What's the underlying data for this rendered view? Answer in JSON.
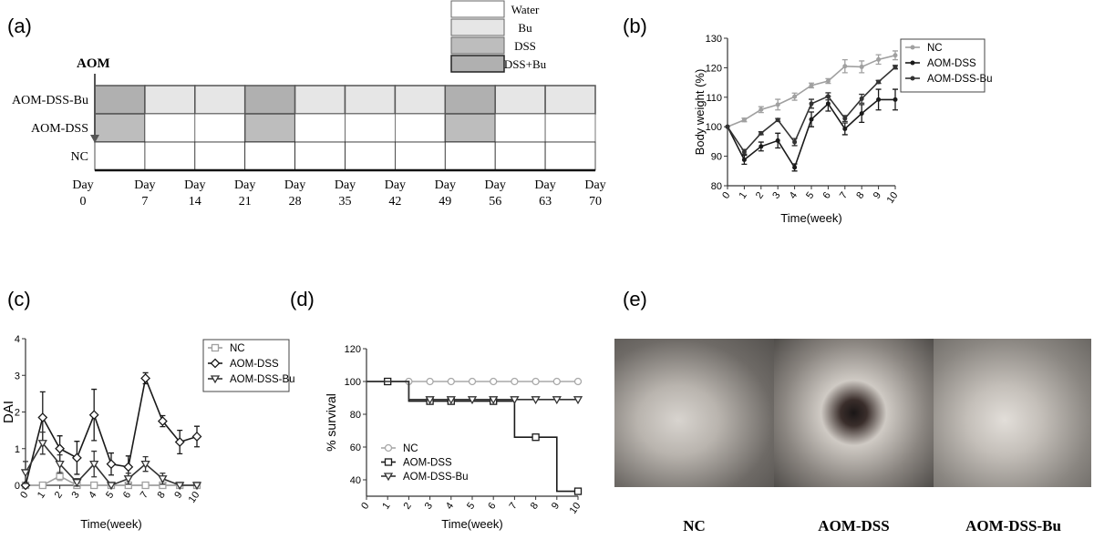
{
  "panel_labels": {
    "a": "(a)",
    "b": "(b)",
    "c": "(c)",
    "d": "(d)",
    "e": "(e)"
  },
  "schedule": {
    "legend": [
      {
        "label": "Water",
        "color": "#ffffff"
      },
      {
        "label": "Bu",
        "color": "#e6e6e6"
      },
      {
        "label": "DSS",
        "color": "#bdbdbd"
      },
      {
        "label": "DSS+Bu",
        "color": "#b0b0b0"
      }
    ],
    "aom_label": "AOM",
    "rows": [
      {
        "label": "AOM-DSS-Bu",
        "cells": [
          "DSS+Bu",
          "Bu",
          "Bu",
          "DSS+Bu",
          "Bu",
          "Bu",
          "Bu",
          "DSS+Bu",
          "Bu",
          "Bu"
        ]
      },
      {
        "label": "AOM-DSS",
        "cells": [
          "DSS",
          "Water",
          "Water",
          "DSS",
          "Water",
          "Water",
          "Water",
          "DSS",
          "Water",
          "Water"
        ]
      },
      {
        "label": "NC",
        "cells": [
          "Water",
          "Water",
          "Water",
          "Water",
          "Water",
          "Water",
          "Water",
          "Water",
          "Water",
          "Water"
        ]
      }
    ],
    "day_prefix": "Day",
    "days": [
      "0",
      "7",
      "14",
      "21",
      "28",
      "35",
      "42",
      "49",
      "56",
      "63",
      "70"
    ]
  },
  "chart_data": [
    {
      "panel": "b",
      "type": "line",
      "xlabel": "Time(week)",
      "ylabel": "Body weight (%)",
      "x": [
        0,
        1,
        2,
        3,
        4,
        5,
        6,
        7,
        8,
        9,
        10
      ],
      "xticks": [
        "0",
        "1",
        "2",
        "3",
        "4",
        "5",
        "6",
        "7",
        "8",
        "9",
        "10"
      ],
      "ylim": [
        80,
        130
      ],
      "yticks": [
        80,
        90,
        100,
        110,
        120,
        130
      ],
      "legend_position": "top-right",
      "series": [
        {
          "name": "NC",
          "color": "#a0a0a0",
          "marker": "dot",
          "values": [
            100,
            102.3,
            105.8,
            107.5,
            110.2,
            114,
            115.5,
            120.5,
            120.3,
            122.8,
            124.2
          ],
          "errors": [
            0,
            0.6,
            1,
            1.8,
            1.2,
            0.8,
            0.8,
            2.2,
            2,
            1.6,
            1.5
          ]
        },
        {
          "name": "AOM-DSS",
          "color": "#1a1a1a",
          "marker": "dot",
          "values": [
            100,
            88.8,
            93.3,
            95.3,
            86.2,
            102.5,
            107.8,
            99.3,
            104.5,
            109.2,
            109.2
          ],
          "errors": [
            0,
            1.5,
            1.5,
            2.5,
            1.2,
            2.5,
            2.5,
            2,
            3,
            3.5,
            3.5
          ]
        },
        {
          "name": "AOM-DSS-Bu",
          "color": "#333333",
          "marker": "dot",
          "values": [
            100,
            91.5,
            97.8,
            102.3,
            94.8,
            107.8,
            110.3,
            102.8,
            109.5,
            115.2,
            120.2
          ],
          "errors": [
            0,
            0.8,
            0.5,
            0.5,
            1.2,
            1.5,
            1.2,
            1,
            1.5,
            0.5,
            0.6
          ]
        }
      ]
    },
    {
      "panel": "c",
      "type": "line",
      "xlabel": "Time(week)",
      "ylabel": "DAI",
      "x": [
        0,
        1,
        2,
        3,
        4,
        5,
        6,
        7,
        8,
        9,
        10
      ],
      "xticks": [
        "0",
        "1",
        "2",
        "3",
        "4",
        "5",
        "6",
        "7",
        "8",
        "9",
        "10"
      ],
      "ylim": [
        0,
        4
      ],
      "yticks": [
        0,
        1,
        2,
        3,
        4
      ],
      "legend_position": "top-right",
      "series": [
        {
          "name": "NC",
          "color": "#a0a0a0",
          "marker": "square",
          "values": [
            0,
            0,
            0.25,
            0,
            0,
            0,
            0,
            0,
            0,
            0,
            0
          ],
          "errors": [
            0,
            0,
            0.12,
            0,
            0,
            0,
            0,
            0,
            0,
            0,
            0
          ]
        },
        {
          "name": "AOM-DSS",
          "color": "#1a1a1a",
          "marker": "diamond",
          "values": [
            0,
            1.85,
            1.0,
            0.75,
            1.92,
            0.58,
            0.5,
            2.92,
            1.75,
            1.18,
            1.33
          ],
          "errors": [
            0,
            0.7,
            0.35,
            0.45,
            0.7,
            0.3,
            0.3,
            0.15,
            0.15,
            0.32,
            0.28
          ]
        },
        {
          "name": "AOM-DSS-Bu",
          "color": "#333333",
          "marker": "triangle-down",
          "values": [
            0.35,
            1.15,
            0.58,
            0.08,
            0.58,
            0,
            0.18,
            0.58,
            0.18,
            0,
            0
          ],
          "errors": [
            0.3,
            0.3,
            0.25,
            0.1,
            0.35,
            0,
            0.15,
            0.2,
            0.15,
            0,
            0
          ]
        }
      ]
    },
    {
      "panel": "d",
      "type": "line",
      "step": true,
      "xlabel": "Time(week)",
      "ylabel": "% survival",
      "x": [
        0,
        1,
        2,
        3,
        4,
        5,
        6,
        7,
        8,
        9,
        10
      ],
      "xticks": [
        "0",
        "1",
        "2",
        "3",
        "4",
        "5",
        "6",
        "7",
        "8",
        "9",
        "10"
      ],
      "ylim": [
        30,
        120
      ],
      "yticks": [
        40,
        60,
        80,
        100,
        120
      ],
      "legend_position": "bottom-left",
      "series": [
        {
          "name": "NC",
          "color": "#a8a8a8",
          "marker": "circle",
          "values": [
            100,
            100,
            100,
            100,
            100,
            100,
            100,
            100,
            100,
            100,
            100
          ],
          "marker_x": [
            2,
            3,
            4,
            5,
            6,
            7,
            8,
            9,
            10
          ]
        },
        {
          "name": "AOM-DSS",
          "color": "#1a1a1a",
          "marker": "square",
          "values": [
            100,
            100,
            88,
            88,
            88,
            88,
            88,
            66,
            66,
            33,
            33
          ],
          "marker_x": [
            1,
            3,
            4,
            6,
            8,
            10
          ]
        },
        {
          "name": "AOM-DSS-Bu",
          "color": "#333333",
          "marker": "triangle-down",
          "values": [
            100,
            100,
            89,
            89,
            89,
            89,
            89,
            89,
            89,
            89,
            89
          ],
          "marker_x": [
            3,
            4,
            5,
            6,
            7,
            8,
            9,
            10
          ]
        }
      ]
    }
  ],
  "photos": [
    {
      "label": "NC"
    },
    {
      "label": "AOM-DSS"
    },
    {
      "label": "AOM-DSS-Bu"
    }
  ]
}
